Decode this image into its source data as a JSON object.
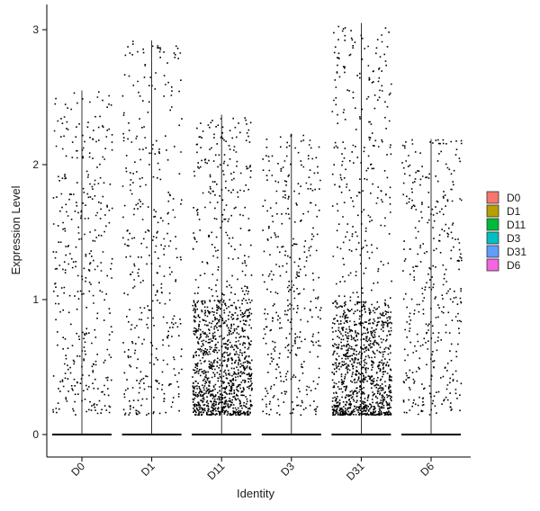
{
  "chart_data": {
    "type": "violin",
    "xlabel": "Identity",
    "ylabel": "Expression Level",
    "ylim": [
      -0.17,
      3.05
    ],
    "y_ticks": [
      0,
      1,
      2,
      3
    ],
    "grid": false,
    "legend_position": "right",
    "categories": [
      "D0",
      "D1",
      "D11",
      "D3",
      "D31",
      "D6"
    ],
    "max_values": [
      2.55,
      2.92,
      2.37,
      2.23,
      3.05,
      2.19
    ],
    "nonzero_point_density": [
      "medium",
      "medium",
      "very high",
      "medium",
      "very high",
      "medium"
    ],
    "legend": [
      {
        "label": "D0",
        "color": "#F8766D"
      },
      {
        "label": "D1",
        "color": "#B79F00"
      },
      {
        "label": "D11",
        "color": "#00BA38"
      },
      {
        "label": "D3",
        "color": "#00BFC4"
      },
      {
        "label": "D31",
        "color": "#619CFF"
      },
      {
        "label": "D6",
        "color": "#F564E3"
      }
    ]
  }
}
